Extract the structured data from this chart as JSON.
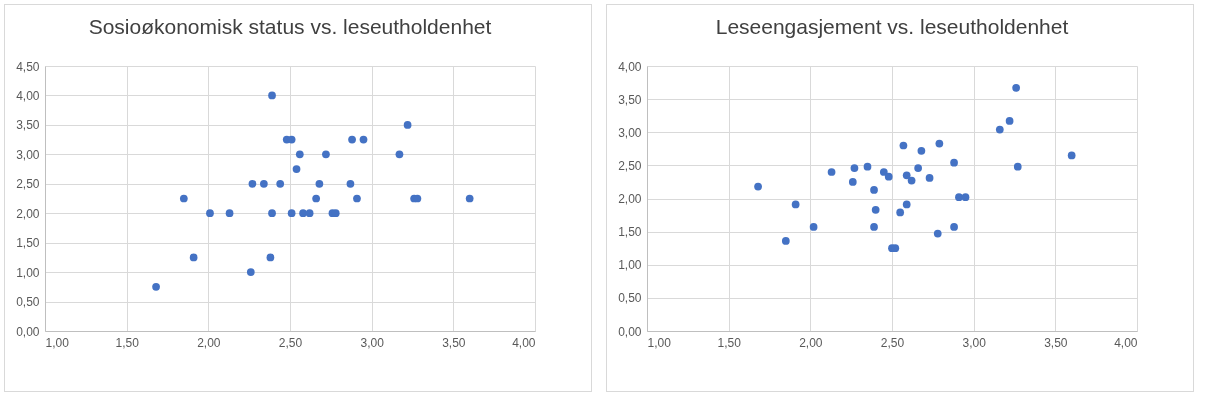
{
  "chart_data": [
    {
      "type": "scatter",
      "title": "Sosioøkonomisk status vs. leseutholdenhet",
      "marker": "circle",
      "grid": true,
      "xlim": [
        1,
        4
      ],
      "ylim": [
        0,
        4.5
      ],
      "xticks": [
        {
          "value": 1,
          "label": "1,00"
        },
        {
          "value": 1.5,
          "label": "1,50"
        },
        {
          "value": 2,
          "label": "2,00"
        },
        {
          "value": 2.5,
          "label": "2,50"
        },
        {
          "value": 3,
          "label": "3,00"
        },
        {
          "value": 3.5,
          "label": "3,50"
        },
        {
          "value": 4,
          "label": "4,00"
        }
      ],
      "yticks": [
        {
          "value": 0,
          "label": "0,00"
        },
        {
          "value": 0.5,
          "label": "0,50"
        },
        {
          "value": 1,
          "label": "1,00"
        },
        {
          "value": 1.5,
          "label": "1,50"
        },
        {
          "value": 2,
          "label": "2,00"
        },
        {
          "value": 2.5,
          "label": "2,50"
        },
        {
          "value": 3,
          "label": "3,00"
        },
        {
          "value": 3.5,
          "label": "3,50"
        },
        {
          "value": 4,
          "label": "4,00"
        },
        {
          "value": 4.5,
          "label": "4,50"
        }
      ],
      "series": [
        {
          "color": "#4472c4",
          "x": [
            1.68,
            1.85,
            1.91,
            2.01,
            2.13,
            2.26,
            2.27,
            2.34,
            2.38,
            2.39,
            2.39,
            2.44,
            2.48,
            2.51,
            2.51,
            2.54,
            2.56,
            2.58,
            2.62,
            2.66,
            2.68,
            2.72,
            2.76,
            2.78,
            2.87,
            2.88,
            2.91,
            2.95,
            3.17,
            3.22,
            3.26,
            3.28,
            3.6
          ],
          "values": [
            0.75,
            2.25,
            1.25,
            2,
            2,
            1,
            2.5,
            2.5,
            1.25,
            4,
            2,
            2.5,
            3.25,
            3.25,
            2,
            2.75,
            3,
            2,
            2,
            2.25,
            2.5,
            3,
            2,
            2,
            2.5,
            3.25,
            2.25,
            3.25,
            3,
            3.5,
            2.25,
            2.25,
            2.25
          ]
        }
      ]
    },
    {
      "type": "scatter",
      "title": "Leseengasjement vs. leseutholdenhet",
      "marker": "circle",
      "grid": true,
      "xlim": [
        1,
        4
      ],
      "ylim": [
        0,
        4
      ],
      "xticks": [
        {
          "value": 1,
          "label": "1,00"
        },
        {
          "value": 1.5,
          "label": "1,50"
        },
        {
          "value": 2,
          "label": "2,00"
        },
        {
          "value": 2.5,
          "label": "2,50"
        },
        {
          "value": 3,
          "label": "3,00"
        },
        {
          "value": 3.5,
          "label": "3,50"
        },
        {
          "value": 4,
          "label": "4,00"
        }
      ],
      "yticks": [
        {
          "value": 0,
          "label": "0,00"
        },
        {
          "value": 0.5,
          "label": "0,50"
        },
        {
          "value": 1,
          "label": "1,00"
        },
        {
          "value": 1.5,
          "label": "1,50"
        },
        {
          "value": 2,
          "label": "2,00"
        },
        {
          "value": 2.5,
          "label": "2,50"
        },
        {
          "value": 3,
          "label": "3,00"
        },
        {
          "value": 3.5,
          "label": "3,50"
        },
        {
          "value": 4,
          "label": "4,00"
        }
      ],
      "series": [
        {
          "color": "#4472c4",
          "x": [
            3.26,
            3.22,
            3.16,
            2.57,
            2.68,
            2.79,
            3.6,
            2.88,
            3.27,
            2.13,
            2.27,
            2.35,
            2.45,
            2.48,
            2.66,
            2.59,
            2.62,
            2.73,
            2.26,
            1.68,
            2.39,
            1.91,
            2.59,
            2.4,
            2.55,
            2.91,
            2.95,
            2.02,
            2.39,
            2.88,
            2.78,
            1.85,
            2.5,
            2.52
          ],
          "values": [
            3.67,
            3.17,
            3.04,
            2.8,
            2.72,
            2.83,
            2.65,
            2.54,
            2.48,
            2.4,
            2.46,
            2.48,
            2.4,
            2.33,
            2.46,
            2.35,
            2.27,
            2.31,
            2.25,
            2.18,
            2.13,
            1.91,
            1.91,
            1.83,
            1.79,
            2.02,
            2.02,
            1.57,
            1.57,
            1.57,
            1.47,
            1.36,
            1.25,
            1.25
          ]
        }
      ]
    }
  ]
}
